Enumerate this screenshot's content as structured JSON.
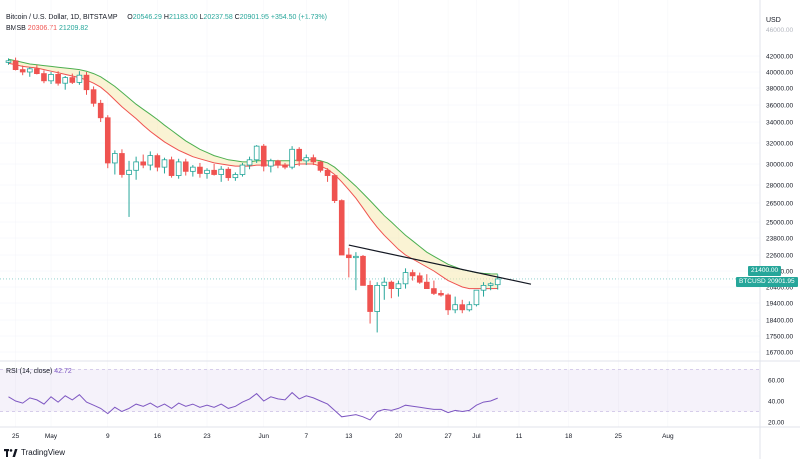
{
  "header": {
    "symbol": "Bitcoin / U.S. Dollar, 1D, BITSTAMP",
    "ohlc": {
      "o_label": "O",
      "o": "20546.29",
      "h_label": "H",
      "h": "21183.00",
      "l_label": "L",
      "l": "20237.58",
      "c_label": "C",
      "c": "20901.95",
      "change": "+354.50 (+1.73%)"
    },
    "indicator": {
      "name": "BMSB",
      "v1": "20306.71",
      "v2": "21209.82"
    }
  },
  "currency": "USD",
  "price_tags": {
    "symbol": "BTCUSD",
    "price": "20901.95"
  },
  "rsi": {
    "label": "RSI (14, close)",
    "value": "42.72"
  },
  "footer": {
    "brand": "TradingView"
  },
  "colors": {
    "up": "#26a69a",
    "down": "#ef5350",
    "sma": "#ef5350",
    "ema": "#4caf50",
    "trend": "#131722",
    "rsi": "#7e57c2"
  },
  "chart_data": {
    "type": "candlestick",
    "price_axis": {
      "ticks": [
        {
          "v": 42000,
          "label": "42000.00"
        },
        {
          "v": 40000,
          "label": "40000.00"
        },
        {
          "v": 38000,
          "label": "38000.00"
        },
        {
          "v": 36000,
          "label": "36000.00"
        },
        {
          "v": 34000,
          "label": "34000.00"
        },
        {
          "v": 32000,
          "label": "32000.00"
        },
        {
          "v": 30000,
          "label": "30000.00"
        },
        {
          "v": 28000,
          "label": "28000.00"
        },
        {
          "v": 26500,
          "label": "26500.00"
        },
        {
          "v": 25000,
          "label": "25000.00"
        },
        {
          "v": 23800,
          "label": "23800.00"
        },
        {
          "v": 22600,
          "label": "22600.00"
        },
        {
          "v": 21400,
          "label": "21400.00"
        },
        {
          "v": 20400,
          "label": "20400.00"
        },
        {
          "v": 19400,
          "label": "19400.00"
        },
        {
          "v": 18400,
          "label": "18400.00"
        },
        {
          "v": 17500,
          "label": "17500.00"
        },
        {
          "v": 16700,
          "label": "16700.00"
        }
      ],
      "faded_top_label": "46000.00"
    },
    "time_axis": {
      "ticks": [
        {
          "i": 1,
          "label": "25"
        },
        {
          "i": 6,
          "label": "May"
        },
        {
          "i": 14,
          "label": "9"
        },
        {
          "i": 21,
          "label": "16"
        },
        {
          "i": 28,
          "label": "23"
        },
        {
          "i": 36,
          "label": "Jun"
        },
        {
          "i": 42,
          "label": "7"
        },
        {
          "i": 48,
          "label": "13"
        },
        {
          "i": 55,
          "label": "20"
        },
        {
          "i": 62,
          "label": "27"
        },
        {
          "i": 66,
          "label": "Jul"
        },
        {
          "i": 72,
          "label": "11"
        },
        {
          "i": 79,
          "label": "18"
        },
        {
          "i": 86,
          "label": "25"
        },
        {
          "i": 93,
          "label": "Aug"
        }
      ]
    },
    "candles": [
      [
        41200,
        41700,
        40900,
        41400
      ],
      [
        41400,
        41800,
        40200,
        40300
      ],
      [
        40300,
        40800,
        39600,
        40000
      ],
      [
        40000,
        40600,
        39400,
        40400
      ],
      [
        40400,
        40900,
        39700,
        39800
      ],
      [
        39800,
        40200,
        38600,
        38900
      ],
      [
        38900,
        40000,
        38500,
        39700
      ],
      [
        39700,
        40100,
        38300,
        38600
      ],
      [
        38600,
        39500,
        37800,
        39300
      ],
      [
        39300,
        39800,
        38500,
        38700
      ],
      [
        38700,
        40100,
        38400,
        39600
      ],
      [
        39600,
        40000,
        37200,
        37800
      ],
      [
        37800,
        38200,
        35800,
        36200
      ],
      [
        36200,
        36600,
        34000,
        34500
      ],
      [
        34500,
        34800,
        29600,
        30100
      ],
      [
        30100,
        31300,
        29000,
        31000
      ],
      [
        31000,
        31400,
        28700,
        29000
      ],
      [
        29000,
        30300,
        25400,
        29400
      ],
      [
        29400,
        30700,
        28500,
        30200
      ],
      [
        30200,
        30900,
        29600,
        29900
      ],
      [
        29900,
        31200,
        29400,
        30800
      ],
      [
        30800,
        31000,
        29300,
        29700
      ],
      [
        29700,
        30600,
        29100,
        30400
      ],
      [
        30400,
        30700,
        28700,
        28900
      ],
      [
        28900,
        30500,
        28600,
        30200
      ],
      [
        30200,
        30500,
        28900,
        29300
      ],
      [
        29300,
        29900,
        28800,
        29700
      ],
      [
        29700,
        30100,
        28700,
        29100
      ],
      [
        29100,
        29600,
        28600,
        29400
      ],
      [
        29400,
        30000,
        28900,
        29000
      ],
      [
        29000,
        29800,
        28300,
        29500
      ],
      [
        29500,
        29700,
        28400,
        28700
      ],
      [
        28700,
        29200,
        28400,
        29000
      ],
      [
        29000,
        30100,
        28800,
        29900
      ],
      [
        29900,
        30700,
        29500,
        30400
      ],
      [
        30400,
        31800,
        30100,
        31700
      ],
      [
        31700,
        31900,
        29300,
        29800
      ],
      [
        29800,
        30500,
        29200,
        30300
      ],
      [
        30300,
        30400,
        29600,
        29900
      ],
      [
        29900,
        30100,
        29500,
        29700
      ],
      [
        29700,
        31700,
        29500,
        31400
      ],
      [
        31400,
        31600,
        29800,
        30300
      ],
      [
        30300,
        30900,
        29900,
        30600
      ],
      [
        30600,
        30900,
        29900,
        30200
      ],
      [
        30200,
        30300,
        29200,
        29400
      ],
      [
        29400,
        29600,
        28300,
        28900
      ],
      [
        28900,
        28900,
        26500,
        26700
      ],
      [
        26700,
        26800,
        22600,
        22600
      ],
      [
        22600,
        23100,
        21000,
        22400
      ],
      [
        22400,
        22800,
        20200,
        22500
      ],
      [
        22500,
        22600,
        20500,
        20500
      ],
      [
        20500,
        20800,
        18200,
        18900
      ],
      [
        18900,
        20700,
        17700,
        20500
      ],
      [
        20500,
        21000,
        19600,
        20700
      ],
      [
        20700,
        20800,
        19700,
        20300
      ],
      [
        20300,
        20800,
        19800,
        20600
      ],
      [
        20600,
        21600,
        20300,
        21300
      ],
      [
        21300,
        21500,
        20800,
        21100
      ],
      [
        21100,
        21300,
        20600,
        20700
      ],
      [
        20700,
        21200,
        20500,
        20300
      ],
      [
        20300,
        20800,
        19900,
        20000
      ],
      [
        20000,
        20200,
        19800,
        19900
      ],
      [
        19900,
        20000,
        18700,
        19000
      ],
      [
        19000,
        19800,
        18800,
        19300
      ],
      [
        19300,
        19600,
        18800,
        19000
      ],
      [
        19000,
        19500,
        18900,
        19300
      ],
      [
        19300,
        20200,
        19200,
        20200
      ],
      [
        20200,
        20700,
        19800,
        20500
      ],
      [
        20500,
        20700,
        20200,
        20600
      ],
      [
        20546,
        21183,
        20238,
        20902
      ]
    ],
    "bmsb": {
      "sma": [
        41100,
        40900,
        40700,
        40600,
        40500,
        40300,
        40100,
        39900,
        39700,
        39500,
        39300,
        39000,
        38600,
        38100,
        37400,
        36600,
        35800,
        35100,
        34400,
        33700,
        33100,
        32600,
        32100,
        31700,
        31300,
        31000,
        30700,
        30500,
        30300,
        30100,
        30000,
        29900,
        29800,
        29800,
        29800,
        29900,
        29900,
        29900,
        29900,
        29900,
        29900,
        30000,
        30000,
        30000,
        29800,
        29500,
        29000,
        28300,
        27600,
        26900,
        26100,
        25300,
        24600,
        24000,
        23500,
        23000,
        22600,
        22300,
        22000,
        21700,
        21400,
        21100,
        20800,
        20600,
        20400,
        20300,
        20300,
        20300,
        20300,
        20307
      ],
      "ema": [
        41600,
        41400,
        41200,
        41000,
        40900,
        40800,
        40700,
        40600,
        40500,
        40400,
        40300,
        40100,
        39800,
        39400,
        38800,
        38200,
        37500,
        36800,
        36100,
        35500,
        34900,
        34300,
        33700,
        33200,
        32700,
        32200,
        31800,
        31400,
        31100,
        30800,
        30600,
        30400,
        30300,
        30200,
        30200,
        30300,
        30300,
        30300,
        30300,
        30300,
        30300,
        30400,
        30400,
        30400,
        30300,
        30100,
        29700,
        29100,
        28500,
        27900,
        27300,
        26700,
        26100,
        25500,
        25000,
        24500,
        24000,
        23600,
        23200,
        22800,
        22500,
        22200,
        21900,
        21700,
        21500,
        21400,
        21300,
        21250,
        21220,
        21210
      ]
    },
    "trendline": [
      {
        "i": 48,
        "v": 23300
      },
      {
        "i": 72,
        "v": 20700
      }
    ],
    "rsi": {
      "levels": [
        70,
        30
      ],
      "ticks": [
        {
          "v": 60,
          "label": "60.00"
        },
        {
          "v": 40,
          "label": "40.00"
        },
        {
          "v": 20,
          "label": "20.00"
        }
      ],
      "values": [
        44,
        40,
        38,
        43,
        41,
        37,
        44,
        39,
        45,
        41,
        46,
        39,
        36,
        33,
        28,
        34,
        30,
        33,
        37,
        35,
        38,
        34,
        37,
        33,
        38,
        35,
        37,
        34,
        36,
        34,
        37,
        33,
        35,
        39,
        42,
        47,
        40,
        44,
        42,
        41,
        48,
        42,
        45,
        43,
        40,
        37,
        31,
        25,
        26,
        27,
        25,
        22,
        30,
        32,
        31,
        33,
        36,
        35,
        34,
        33,
        32,
        32,
        29,
        31,
        30,
        31,
        36,
        39,
        40,
        42.72
      ]
    }
  }
}
